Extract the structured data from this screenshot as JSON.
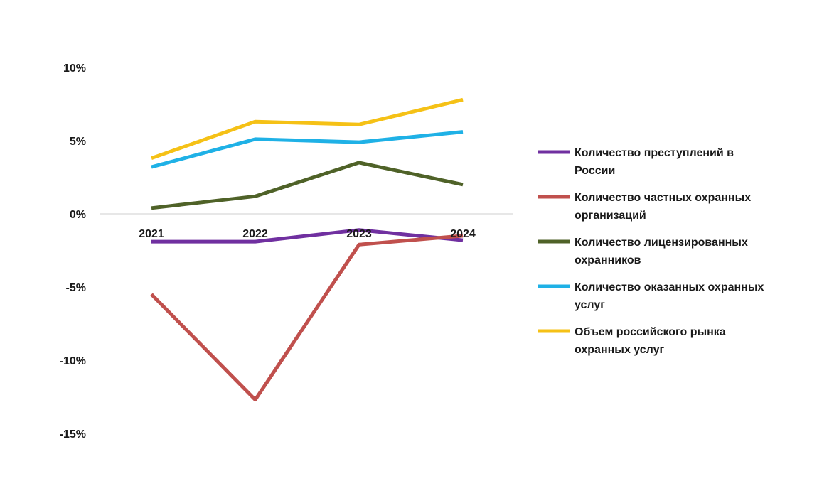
{
  "chart_data": {
    "type": "line",
    "title": "",
    "xlabel": "",
    "ylabel": "",
    "x": [
      "2021",
      "2022",
      "2023",
      "2024"
    ],
    "ylim": [
      -15,
      10
    ],
    "y_ticks": [
      {
        "value": 10,
        "label": "10%"
      },
      {
        "value": 5,
        "label": "5%"
      },
      {
        "value": 0,
        "label": "0%"
      },
      {
        "value": -5,
        "label": "-5%"
      },
      {
        "value": -10,
        "label": "-10%"
      },
      {
        "value": -15,
        "label": "-15%"
      }
    ],
    "grid": false,
    "legend_position": "right",
    "series": [
      {
        "name": "Количество преступлений в России",
        "legend_lines": [
          "Количество преступлений в",
          "России"
        ],
        "color": "#7030a0",
        "values": [
          -1.9,
          -1.9,
          -1.1,
          -1.8
        ]
      },
      {
        "name": "Количество частных охранных организаций",
        "legend_lines": [
          "Количество частных охранных",
          "организаций"
        ],
        "color": "#c0504d",
        "values": [
          -5.5,
          -12.7,
          -2.1,
          -1.5
        ]
      },
      {
        "name": "Количество лицензированных охранников",
        "legend_lines": [
          "Количество лицензированных",
          "охранников"
        ],
        "color": "#4f6228",
        "values": [
          0.4,
          1.2,
          3.5,
          2.0
        ]
      },
      {
        "name": "Количество оказанных охранных услуг",
        "legend_lines": [
          "Количество оказанных охранных",
          "услуг"
        ],
        "color": "#1fb1e6",
        "values": [
          3.2,
          5.1,
          4.9,
          5.6
        ]
      },
      {
        "name": "Объем российского рынка охранных услуг",
        "legend_lines": [
          "Объем российского рынка",
          "охранных услуг"
        ],
        "color": "#f5c116",
        "values": [
          3.8,
          6.3,
          6.1,
          7.8
        ]
      }
    ]
  }
}
